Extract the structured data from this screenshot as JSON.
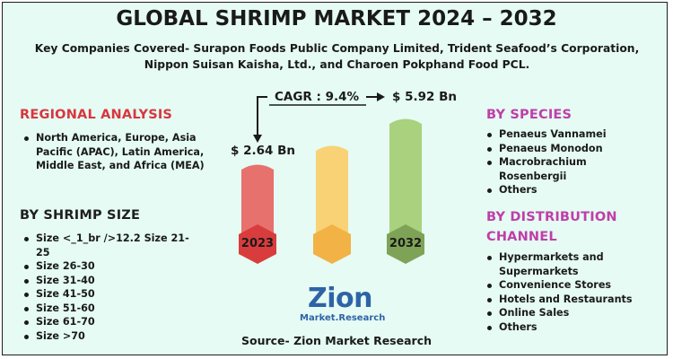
{
  "title": "GLOBAL SHRIMP MARKET 2024 – 2032",
  "subtitle": "Key Companies Covered- Surapon Foods Public Company Limited, Trident Seafood’s Corporation, Nippon Suisan Kaisha, Ltd., and Charoen Pokphand Food PCL.",
  "regional": {
    "heading": "REGIONAL ANALYSIS",
    "items": [
      "North America, Europe, Asia Pacific (APAC), Latin America, Middle East, and Africa (MEA)"
    ]
  },
  "shrimp_size": {
    "heading": "BY SHRIMP SIZE",
    "items": [
      "Size <_1_br />12.2 Size 21-25",
      "Size 26-30",
      "Size 31-40",
      "Size 41-50",
      "Size 51-60",
      "Size 61-70",
      "Size >70"
    ]
  },
  "species": {
    "heading": "BY SPECIES",
    "items": [
      "Penaeus Vannamei",
      "Penaeus Monodon",
      "Macrobrachium Rosenbergii",
      "Others"
    ]
  },
  "distribution": {
    "heading_line1": "BY DISTRIBUTION",
    "heading_line2": "CHANNEL",
    "items": [
      "Hypermarkets and Supermarkets",
      "Convenience Stores",
      "Hotels and Restaurants",
      "Online Sales",
      "Others"
    ]
  },
  "market": {
    "start_value": "$ 2.64 Bn",
    "end_value": "$ 5.92 Bn",
    "cagr": "CAGR : 9.4%",
    "start_year": "2023",
    "end_year": "2032"
  },
  "logo": {
    "word": "Zion",
    "tagline": "Market.Research"
  },
  "source": "Source- Zion Market Research",
  "colors": {
    "background": "#e5fbf4",
    "red": "#d9363e",
    "pink": "#c03ea8",
    "bar_red": "#e7716c",
    "bar_yellow": "#f8d275",
    "bar_green": "#a9d17e",
    "circle_red": "#d93c3c",
    "circle_yellow": "#f2b245",
    "circle_green": "#7fa356",
    "logo_blue": "#2e64a6"
  }
}
